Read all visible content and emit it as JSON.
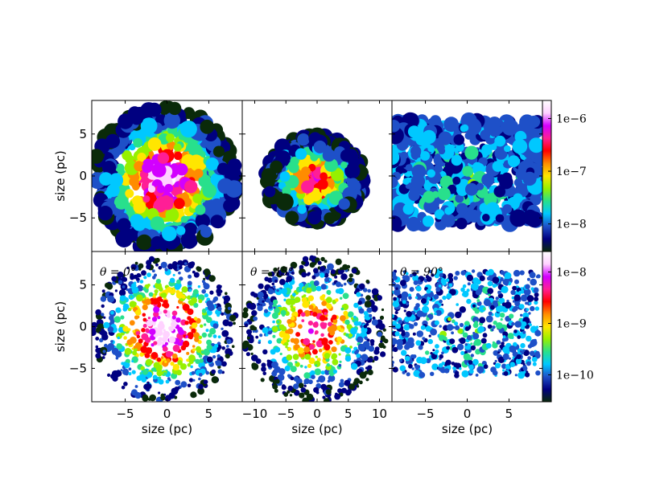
{
  "chart_data": [
    {
      "type": "heatmap",
      "row": "top",
      "panels": [
        {
          "id": "top-left",
          "xlim": [
            -9,
            9
          ],
          "ylim": [
            -9,
            9
          ],
          "shape": "round",
          "intensity": "high",
          "annotation": ""
        },
        {
          "id": "top-middle",
          "xlim": [
            -12,
            12
          ],
          "ylim": [
            -9,
            9
          ],
          "shape": "round-compact",
          "intensity": "medium",
          "annotation": ""
        },
        {
          "id": "top-right",
          "xlim": [
            -9,
            9
          ],
          "ylim": [
            -9,
            9
          ],
          "shape": "rectangular",
          "intensity": "low",
          "annotation": ""
        }
      ],
      "ylabel": "size (pc)",
      "yticks": [
        -5,
        0,
        5
      ],
      "colorbar": {
        "scale": "log",
        "ticks": [
          "1e−6",
          "1e−7",
          "1e−8"
        ],
        "tick_values": [
          1e-06,
          1e-07,
          1e-08
        ],
        "range": [
          3e-09,
          2.2e-06
        ]
      }
    },
    {
      "type": "heatmap",
      "row": "bottom",
      "panels": [
        {
          "id": "bottom-left",
          "xlim": [
            -9,
            9
          ],
          "ylim": [
            -9,
            9
          ],
          "shape": "round-sparse",
          "intensity": "high",
          "annotation": "θ = 0°"
        },
        {
          "id": "bottom-middle",
          "xlim": [
            -12,
            12
          ],
          "ylim": [
            -9,
            9
          ],
          "shape": "round-sparse",
          "intensity": "medium",
          "annotation": "θ = 45°"
        },
        {
          "id": "bottom-right",
          "xlim": [
            -9,
            9
          ],
          "ylim": [
            -9,
            9
          ],
          "shape": "rect-sparse",
          "intensity": "low",
          "annotation": "θ = 90°"
        }
      ],
      "ylabel": "size (pc)",
      "xlabel": "size (pc)",
      "yticks": [
        -5,
        0,
        5
      ],
      "xticks": [
        [
          -5,
          0,
          5
        ],
        [
          -10,
          -5,
          0,
          5,
          10
        ],
        [
          -5,
          0,
          5
        ]
      ],
      "colorbar": {
        "scale": "log",
        "ticks": [
          "1e−8",
          "1e−9",
          "1e−10"
        ],
        "tick_values": [
          1e-08,
          1e-09,
          1e-10
        ],
        "range": [
          3e-11,
          2.5e-08
        ]
      }
    }
  ],
  "colormap": [
    "#0a2a0a",
    "#000080",
    "#1e50c8",
    "#00c8ff",
    "#28e08c",
    "#96f000",
    "#ffe600",
    "#ff8c00",
    "#ff0000",
    "#ff1e96",
    "#d200ff",
    "#ffd2ff",
    "#ffffff"
  ]
}
